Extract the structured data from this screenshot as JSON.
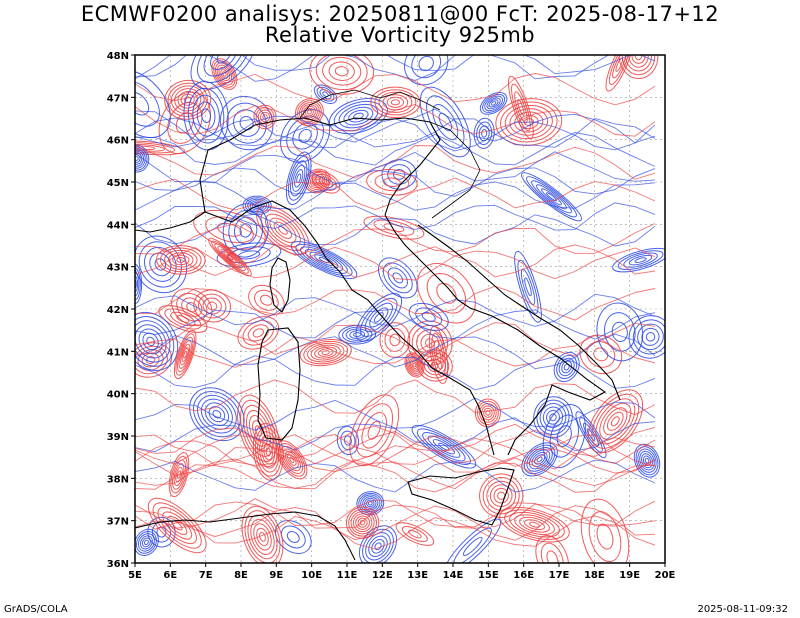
{
  "title": {
    "line1": "ECMWF0200 analisys: 20250811@00 FcT: 2025-08-17+12",
    "line2": "Relative Vorticity 925mb"
  },
  "map": {
    "lon_range": [
      5,
      20
    ],
    "lat_range": [
      36,
      48
    ],
    "lon_labels": [
      "5E",
      "6E",
      "7E",
      "8E",
      "9E",
      "10E",
      "11E",
      "12E",
      "13E",
      "14E",
      "15E",
      "16E",
      "17E",
      "18E",
      "19E",
      "20E"
    ],
    "lat_labels": [
      "36N",
      "37N",
      "38N",
      "39N",
      "40N",
      "41N",
      "42N",
      "43N",
      "44N",
      "45N",
      "46N",
      "47N",
      "48N"
    ],
    "colors": {
      "positive": "#f03c3c",
      "negative": "#2846e6",
      "coast": "#000000",
      "grid": "#999999"
    }
  },
  "footer": {
    "left": "GrADS/COLA",
    "right": "2025-08-11-09:32"
  }
}
